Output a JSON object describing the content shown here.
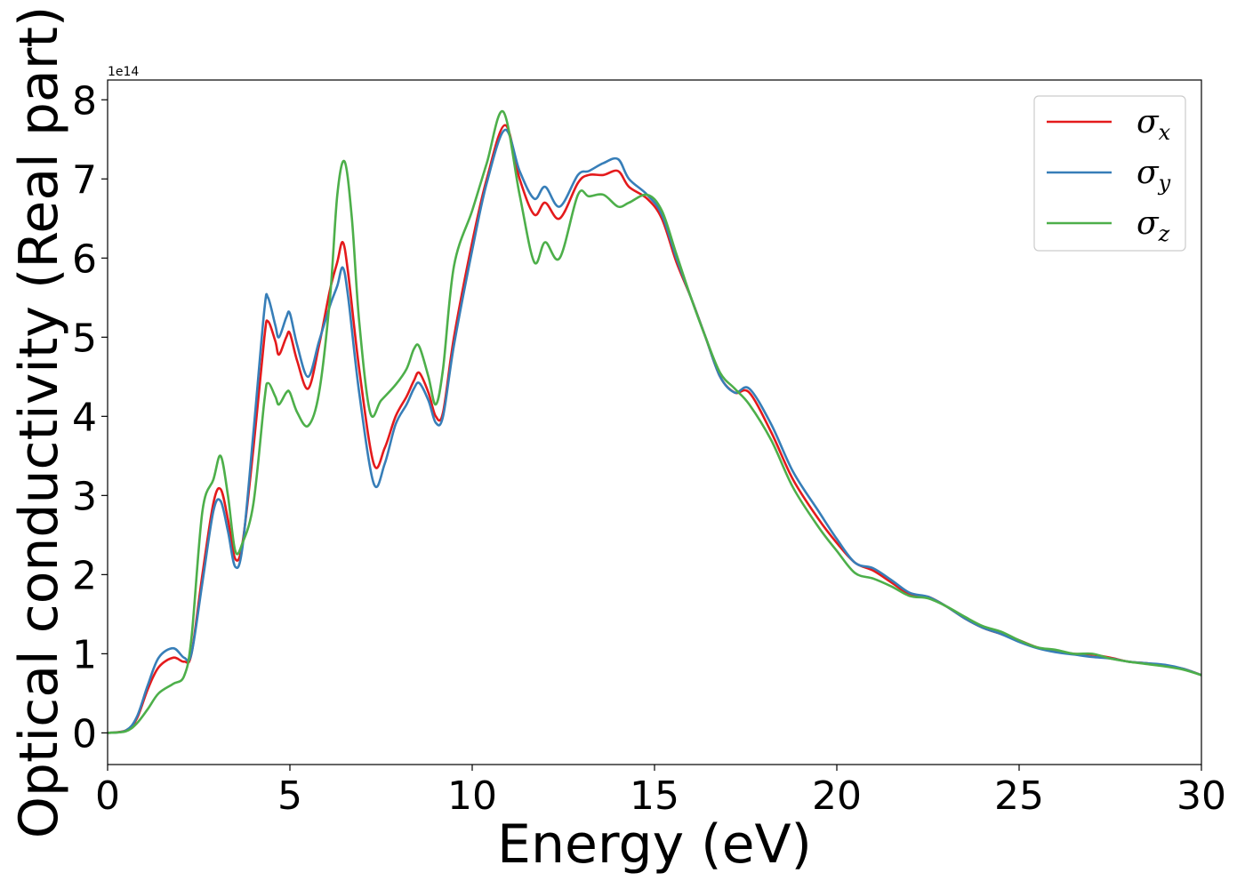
{
  "chart_data": {
    "type": "line",
    "xlabel": "Energy (eV)",
    "ylabel": "Optical conductivity (Real part)",
    "y_offset_text": "1e14",
    "xlim": [
      0,
      30
    ],
    "ylim": [
      -0.4,
      8.25
    ],
    "x_ticks": [
      0,
      5,
      10,
      15,
      20,
      25,
      30
    ],
    "y_ticks": [
      0,
      1,
      2,
      3,
      4,
      5,
      6,
      7,
      8
    ],
    "legend_position": "top-right",
    "grid": false,
    "series": [
      {
        "name": "σx",
        "symbol": "σ",
        "subscript": "x",
        "color": "#e41a1c",
        "points": [
          [
            0,
            0
          ],
          [
            0.5,
            0.03
          ],
          [
            0.8,
            0.18
          ],
          [
            1.1,
            0.55
          ],
          [
            1.4,
            0.83
          ],
          [
            1.8,
            0.95
          ],
          [
            2.1,
            0.9
          ],
          [
            2.3,
            1.0
          ],
          [
            2.6,
            2.0
          ],
          [
            2.9,
            2.9
          ],
          [
            3.1,
            3.08
          ],
          [
            3.3,
            2.7
          ],
          [
            3.5,
            2.2
          ],
          [
            3.7,
            2.4
          ],
          [
            4.0,
            3.6
          ],
          [
            4.3,
            5.0
          ],
          [
            4.4,
            5.2
          ],
          [
            4.6,
            4.95
          ],
          [
            4.7,
            4.78
          ],
          [
            4.9,
            5.0
          ],
          [
            5.0,
            5.05
          ],
          [
            5.2,
            4.7
          ],
          [
            5.5,
            4.35
          ],
          [
            5.8,
            4.9
          ],
          [
            6.1,
            5.6
          ],
          [
            6.3,
            5.95
          ],
          [
            6.45,
            6.2
          ],
          [
            6.6,
            5.8
          ],
          [
            6.9,
            4.6
          ],
          [
            7.3,
            3.4
          ],
          [
            7.6,
            3.6
          ],
          [
            7.9,
            4.0
          ],
          [
            8.2,
            4.25
          ],
          [
            8.4,
            4.45
          ],
          [
            8.55,
            4.55
          ],
          [
            8.8,
            4.3
          ],
          [
            9.0,
            4.0
          ],
          [
            9.2,
            4.05
          ],
          [
            9.5,
            5.0
          ],
          [
            10.0,
            6.2
          ],
          [
            10.4,
            7.0
          ],
          [
            10.9,
            7.68
          ],
          [
            11.3,
            7.0
          ],
          [
            11.7,
            6.55
          ],
          [
            12.0,
            6.7
          ],
          [
            12.4,
            6.5
          ],
          [
            12.9,
            6.95
          ],
          [
            13.2,
            7.05
          ],
          [
            13.6,
            7.05
          ],
          [
            14.0,
            7.1
          ],
          [
            14.3,
            6.9
          ],
          [
            14.8,
            6.75
          ],
          [
            15.2,
            6.5
          ],
          [
            15.6,
            5.95
          ],
          [
            16.0,
            5.5
          ],
          [
            16.4,
            5.0
          ],
          [
            16.8,
            4.5
          ],
          [
            17.2,
            4.3
          ],
          [
            17.6,
            4.3
          ],
          [
            18.2,
            3.8
          ],
          [
            18.8,
            3.2
          ],
          [
            19.5,
            2.7
          ],
          [
            20.0,
            2.4
          ],
          [
            20.5,
            2.15
          ],
          [
            21.0,
            2.05
          ],
          [
            21.5,
            1.9
          ],
          [
            22.0,
            1.75
          ],
          [
            22.5,
            1.72
          ],
          [
            23.0,
            1.6
          ],
          [
            23.5,
            1.45
          ],
          [
            24.0,
            1.33
          ],
          [
            24.5,
            1.25
          ],
          [
            25.0,
            1.17
          ],
          [
            25.5,
            1.08
          ],
          [
            26.0,
            1.03
          ],
          [
            26.5,
            1.0
          ],
          [
            27.0,
            0.99
          ],
          [
            27.5,
            0.95
          ],
          [
            28.0,
            0.9
          ],
          [
            28.5,
            0.88
          ],
          [
            29.0,
            0.85
          ],
          [
            29.5,
            0.81
          ],
          [
            30.0,
            0.73
          ]
        ]
      },
      {
        "name": "σy",
        "symbol": "σ",
        "subscript": "y",
        "color": "#377eb8",
        "points": [
          [
            0,
            0
          ],
          [
            0.5,
            0.03
          ],
          [
            0.8,
            0.2
          ],
          [
            1.1,
            0.6
          ],
          [
            1.4,
            0.95
          ],
          [
            1.8,
            1.07
          ],
          [
            2.1,
            0.95
          ],
          [
            2.3,
            1.0
          ],
          [
            2.6,
            1.9
          ],
          [
            2.9,
            2.8
          ],
          [
            3.1,
            2.93
          ],
          [
            3.3,
            2.55
          ],
          [
            3.5,
            2.1
          ],
          [
            3.7,
            2.35
          ],
          [
            4.0,
            3.8
          ],
          [
            4.3,
            5.35
          ],
          [
            4.4,
            5.5
          ],
          [
            4.6,
            5.15
          ],
          [
            4.7,
            5.0
          ],
          [
            4.9,
            5.25
          ],
          [
            5.0,
            5.3
          ],
          [
            5.2,
            4.9
          ],
          [
            5.5,
            4.5
          ],
          [
            5.8,
            4.95
          ],
          [
            6.1,
            5.4
          ],
          [
            6.3,
            5.65
          ],
          [
            6.45,
            5.88
          ],
          [
            6.6,
            5.5
          ],
          [
            6.9,
            4.3
          ],
          [
            7.3,
            3.15
          ],
          [
            7.6,
            3.4
          ],
          [
            7.9,
            3.9
          ],
          [
            8.2,
            4.15
          ],
          [
            8.4,
            4.35
          ],
          [
            8.55,
            4.42
          ],
          [
            8.8,
            4.2
          ],
          [
            9.0,
            3.92
          ],
          [
            9.2,
            4.0
          ],
          [
            9.5,
            4.9
          ],
          [
            10.0,
            6.1
          ],
          [
            10.4,
            6.95
          ],
          [
            10.9,
            7.62
          ],
          [
            11.3,
            7.1
          ],
          [
            11.7,
            6.75
          ],
          [
            12.0,
            6.9
          ],
          [
            12.4,
            6.65
          ],
          [
            12.9,
            7.05
          ],
          [
            13.2,
            7.1
          ],
          [
            13.6,
            7.2
          ],
          [
            14.0,
            7.25
          ],
          [
            14.3,
            7.0
          ],
          [
            14.8,
            6.8
          ],
          [
            15.2,
            6.55
          ],
          [
            15.6,
            6.0
          ],
          [
            16.0,
            5.5
          ],
          [
            16.4,
            5.0
          ],
          [
            16.8,
            4.5
          ],
          [
            17.2,
            4.3
          ],
          [
            17.6,
            4.35
          ],
          [
            18.2,
            3.9
          ],
          [
            18.8,
            3.3
          ],
          [
            19.5,
            2.8
          ],
          [
            20.0,
            2.45
          ],
          [
            20.5,
            2.15
          ],
          [
            21.0,
            2.08
          ],
          [
            21.5,
            1.93
          ],
          [
            22.0,
            1.77
          ],
          [
            22.5,
            1.72
          ],
          [
            23.0,
            1.6
          ],
          [
            23.5,
            1.45
          ],
          [
            24.0,
            1.33
          ],
          [
            24.5,
            1.25
          ],
          [
            25.0,
            1.15
          ],
          [
            25.5,
            1.07
          ],
          [
            26.0,
            1.02
          ],
          [
            26.5,
            0.99
          ],
          [
            27.0,
            0.96
          ],
          [
            27.5,
            0.94
          ],
          [
            28.0,
            0.9
          ],
          [
            28.5,
            0.88
          ],
          [
            29.0,
            0.86
          ],
          [
            29.5,
            0.81
          ],
          [
            30.0,
            0.73
          ]
        ]
      },
      {
        "name": "σz",
        "symbol": "σ",
        "subscript": "z",
        "color": "#4daf4a",
        "points": [
          [
            0,
            0
          ],
          [
            0.5,
            0.02
          ],
          [
            0.8,
            0.12
          ],
          [
            1.1,
            0.3
          ],
          [
            1.4,
            0.5
          ],
          [
            1.8,
            0.62
          ],
          [
            2.1,
            0.72
          ],
          [
            2.3,
            1.2
          ],
          [
            2.6,
            2.8
          ],
          [
            2.9,
            3.2
          ],
          [
            3.1,
            3.5
          ],
          [
            3.3,
            3.0
          ],
          [
            3.5,
            2.3
          ],
          [
            3.7,
            2.4
          ],
          [
            4.0,
            2.9
          ],
          [
            4.3,
            4.2
          ],
          [
            4.4,
            4.42
          ],
          [
            4.6,
            4.25
          ],
          [
            4.7,
            4.15
          ],
          [
            4.9,
            4.3
          ],
          [
            5.0,
            4.3
          ],
          [
            5.2,
            4.05
          ],
          [
            5.5,
            3.88
          ],
          [
            5.8,
            4.3
          ],
          [
            6.1,
            5.5
          ],
          [
            6.3,
            6.8
          ],
          [
            6.5,
            7.22
          ],
          [
            6.7,
            6.5
          ],
          [
            6.9,
            5.2
          ],
          [
            7.2,
            4.05
          ],
          [
            7.5,
            4.2
          ],
          [
            7.9,
            4.4
          ],
          [
            8.2,
            4.6
          ],
          [
            8.4,
            4.85
          ],
          [
            8.55,
            4.88
          ],
          [
            8.8,
            4.5
          ],
          [
            9.0,
            4.15
          ],
          [
            9.2,
            4.6
          ],
          [
            9.5,
            5.9
          ],
          [
            10.0,
            6.6
          ],
          [
            10.4,
            7.2
          ],
          [
            10.85,
            7.85
          ],
          [
            11.3,
            6.8
          ],
          [
            11.7,
            5.95
          ],
          [
            12.0,
            6.2
          ],
          [
            12.4,
            6.0
          ],
          [
            12.9,
            6.8
          ],
          [
            13.2,
            6.78
          ],
          [
            13.6,
            6.8
          ],
          [
            14.0,
            6.65
          ],
          [
            14.3,
            6.7
          ],
          [
            14.8,
            6.8
          ],
          [
            15.2,
            6.6
          ],
          [
            15.6,
            6.05
          ],
          [
            16.0,
            5.5
          ],
          [
            16.4,
            5.0
          ],
          [
            16.8,
            4.55
          ],
          [
            17.2,
            4.35
          ],
          [
            17.6,
            4.15
          ],
          [
            18.2,
            3.7
          ],
          [
            18.8,
            3.1
          ],
          [
            19.5,
            2.6
          ],
          [
            20.0,
            2.3
          ],
          [
            20.5,
            2.02
          ],
          [
            21.0,
            1.95
          ],
          [
            21.5,
            1.85
          ],
          [
            22.0,
            1.73
          ],
          [
            22.5,
            1.7
          ],
          [
            23.0,
            1.6
          ],
          [
            23.5,
            1.47
          ],
          [
            24.0,
            1.35
          ],
          [
            24.5,
            1.28
          ],
          [
            25.0,
            1.17
          ],
          [
            25.5,
            1.08
          ],
          [
            26.0,
            1.05
          ],
          [
            26.5,
            1.0
          ],
          [
            27.0,
            1.0
          ],
          [
            27.5,
            0.94
          ],
          [
            28.0,
            0.9
          ],
          [
            28.5,
            0.87
          ],
          [
            29.0,
            0.84
          ],
          [
            29.5,
            0.8
          ],
          [
            30.0,
            0.73
          ]
        ]
      }
    ]
  }
}
